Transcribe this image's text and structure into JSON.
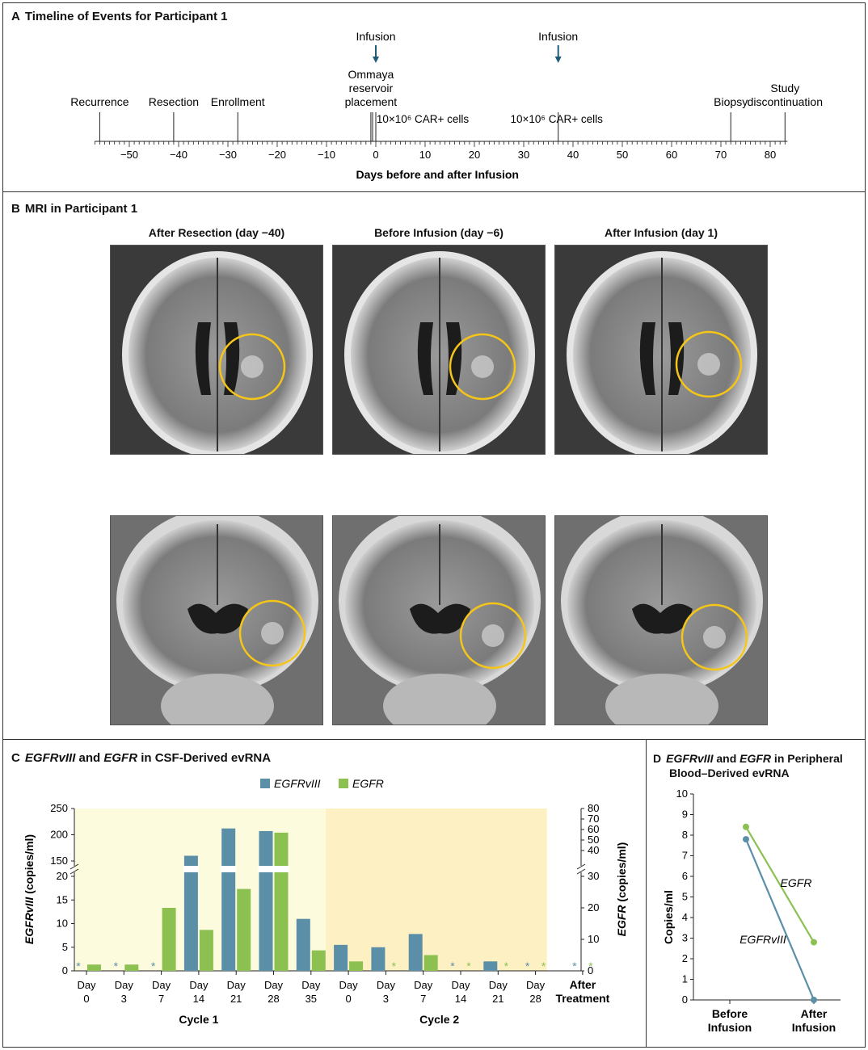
{
  "panelA": {
    "letter": "A",
    "title": "Timeline of Events for Participant 1",
    "xlabel": "Days before and after Infusion",
    "ticks": [
      -50,
      -40,
      -30,
      -20,
      -10,
      0,
      10,
      20,
      30,
      40,
      50,
      60,
      70,
      80
    ],
    "events": [
      {
        "day": -56,
        "lines": [
          "Recurrence"
        ]
      },
      {
        "day": -41,
        "lines": [
          "Resection"
        ]
      },
      {
        "day": -28,
        "lines": [
          "Enrollment"
        ]
      },
      {
        "day": -1,
        "lines": [
          "Ommaya",
          "reservoir",
          "placement"
        ]
      },
      {
        "day": 72,
        "lines": [
          "Biopsy"
        ]
      },
      {
        "day": 83,
        "lines": [
          "Study",
          "discontinuation"
        ]
      }
    ],
    "infusions": [
      {
        "day": 0,
        "label": "Infusion",
        "dose": "10×10⁶ CAR+ cells"
      },
      {
        "day": 37,
        "label": "Infusion",
        "dose": "10×10⁶ CAR+ cells"
      }
    ]
  },
  "panelB": {
    "letter": "B",
    "title": "MRI in Participant 1",
    "columns": [
      "After Resection (day −40)",
      "Before Infusion (day −6)",
      "After Infusion (day 1)"
    ]
  },
  "panelC": {
    "letter": "C",
    "title_gene1": "EGFRvIII",
    "title_and": " and ",
    "title_gene2": "EGFR",
    "title_rest": " in CSF-Derived evRNA",
    "legend": [
      "EGFRvIII",
      "EGFR"
    ],
    "ylabel_left": "EGFRvIII (copies/ml)",
    "ylabel_right": "EGFR (copies/ml)",
    "cycles": [
      "Cycle 1",
      "Cycle 2"
    ]
  },
  "panelD": {
    "letter": "D",
    "title_line1_gene1": "EGFRvIII",
    "title_line1_and": " and ",
    "title_line1_gene2": "EGFR",
    "title_line1_rest": " in Peripheral",
    "title_line2": "Blood–Derived evRNA",
    "ylabel": "Copies/ml"
  },
  "chart_data": [
    {
      "type": "bar",
      "panel": "C",
      "categories": [
        "Day 0",
        "Day 3",
        "Day 7",
        "Day 14",
        "Day 21",
        "Day 28",
        "Day 35",
        "Day 0",
        "Day 3",
        "Day 7",
        "Day 14",
        "Day 21",
        "Day 28",
        "After Treatment"
      ],
      "category_lines": [
        [
          "Day",
          "0"
        ],
        [
          "Day",
          "3"
        ],
        [
          "Day",
          "7"
        ],
        [
          "Day",
          "14"
        ],
        [
          "Day",
          "21"
        ],
        [
          "Day",
          "28"
        ],
        [
          "Day",
          "35"
        ],
        [
          "Day",
          "0"
        ],
        [
          "Day",
          "3"
        ],
        [
          "Day",
          "7"
        ],
        [
          "Day",
          "14"
        ],
        [
          "Day",
          "21"
        ],
        [
          "Day",
          "28"
        ],
        [
          "After",
          "Treatment"
        ]
      ],
      "cycle_of_category": [
        1,
        1,
        1,
        1,
        1,
        1,
        1,
        2,
        2,
        2,
        2,
        2,
        2,
        0
      ],
      "series": [
        {
          "name": "EGFRvIII",
          "color": "#5b8fa8",
          "axis": "left",
          "values": [
            0,
            0,
            0,
            160,
            212,
            207,
            11,
            5.5,
            5,
            7.8,
            0,
            2,
            0,
            0
          ],
          "below_detection": [
            true,
            true,
            true,
            false,
            false,
            false,
            false,
            false,
            false,
            false,
            true,
            false,
            true,
            true
          ]
        },
        {
          "name": "EGFR",
          "color": "#8cc152",
          "axis": "right",
          "values": [
            2,
            2,
            20,
            13,
            26,
            57,
            6.5,
            3,
            0,
            5,
            0,
            0,
            0,
            0
          ],
          "below_detection": [
            false,
            false,
            false,
            false,
            false,
            false,
            false,
            false,
            true,
            false,
            true,
            true,
            true,
            true
          ]
        }
      ],
      "y_left": {
        "lower_range": [
          0,
          20
        ],
        "lower_ticks": [
          0,
          5,
          10,
          15,
          20
        ],
        "upper_range": [
          150,
          250
        ],
        "upper_ticks": [
          150,
          200,
          250
        ],
        "break": true
      },
      "y_right": {
        "lower_range": [
          0,
          30
        ],
        "lower_ticks": [
          0,
          10,
          20,
          30
        ],
        "upper_range": [
          30,
          80
        ],
        "upper_ticks": [
          40,
          50,
          60,
          70,
          80
        ],
        "break": true
      },
      "background": {
        "cycle1_color": "#fdfbdd",
        "cycle2_color": "#fdf1c4"
      },
      "below_detection_marker": "*"
    },
    {
      "type": "line",
      "panel": "D",
      "categories": [
        "Before Infusion",
        "After Infusion"
      ],
      "category_lines": [
        [
          "Before",
          "Infusion"
        ],
        [
          "After",
          "Infusion"
        ]
      ],
      "series": [
        {
          "name": "EGFR",
          "color": "#8cc152",
          "values": [
            8.4,
            2.8
          ]
        },
        {
          "name": "EGFRvIII",
          "color": "#5b8fa8",
          "values": [
            7.8,
            0
          ]
        }
      ],
      "ylabel": "Copies/ml",
      "ylim": [
        0,
        10
      ],
      "yticks": [
        0,
        1,
        2,
        3,
        4,
        5,
        6,
        7,
        8,
        9,
        10
      ]
    }
  ]
}
